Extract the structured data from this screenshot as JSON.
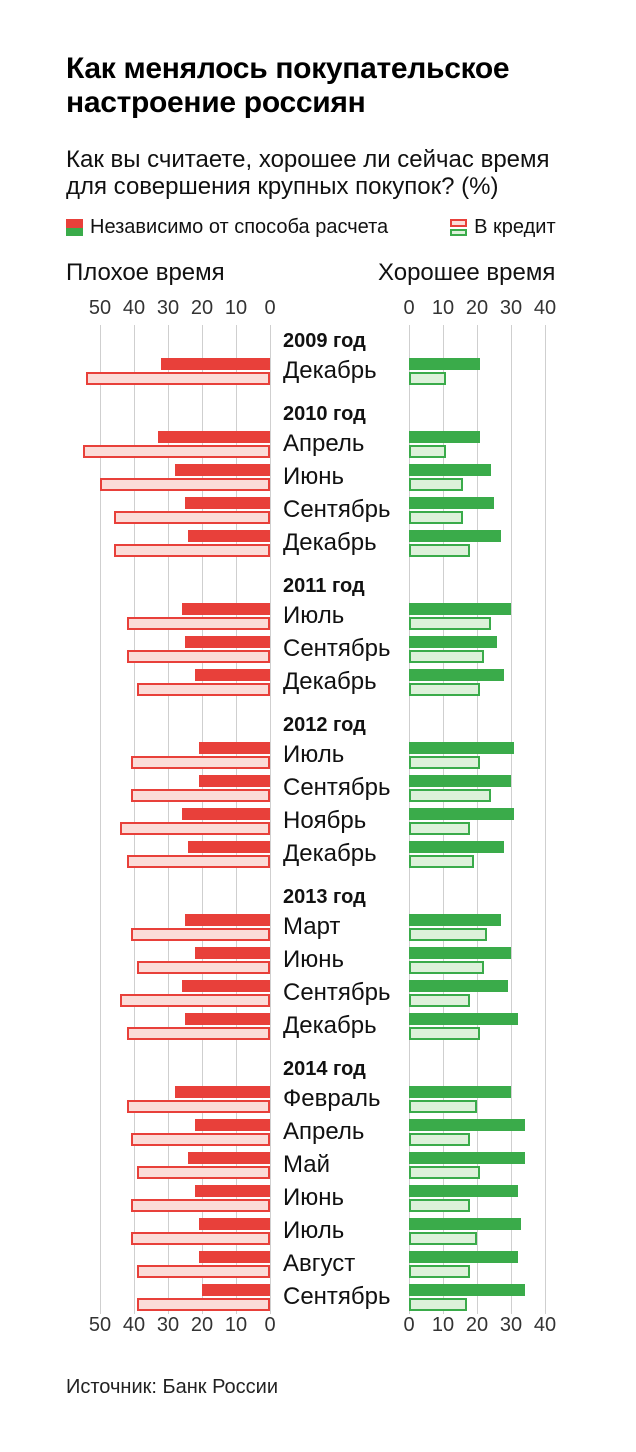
{
  "header": {
    "title_lines": [
      "Как менялось покупательское",
      "настроение россиян"
    ],
    "subtitle_lines": [
      "Как вы считаете, хорошее ли сейчас время",
      "для совершения крупных покупок? (%)"
    ]
  },
  "legend": {
    "any_label": "Независимо от способа расчета",
    "credit_label": "В кредит"
  },
  "columns": {
    "left_header": "Плохое время",
    "right_header": "Хорошее время"
  },
  "axis": {
    "left_ticks": [
      50,
      40,
      30,
      20,
      10,
      0
    ],
    "right_ticks": [
      0,
      10,
      20,
      30,
      40
    ]
  },
  "source": "Источник: Банк России",
  "colors": {
    "red": "#e8403a",
    "red_fill": "#fbdcd8",
    "green": "#3aab4a",
    "green_fill": "#ddf1da",
    "grid": "#cfcfcf"
  },
  "chart_data": {
    "type": "bar",
    "orientation": "diverging-horizontal",
    "title": "Как менялось покупательское настроение россиян",
    "subtitle": "Как вы считаете, хорошее ли сейчас время для совершения крупных покупок? (%)",
    "units": "%",
    "legend_entries": [
      "Независимо от способа расчета",
      "В кредит"
    ],
    "left_side_label": "Плохое время",
    "right_side_label": "Хорошее время",
    "left_axis_range": [
      0,
      55
    ],
    "right_axis_range": [
      0,
      45
    ],
    "grid": true,
    "groups": [
      {
        "year": "2009 год",
        "rows": [
          {
            "month": "Декабрь",
            "bad_any": 32,
            "bad_credit": 54,
            "good_any": 21,
            "good_credit": 11
          }
        ]
      },
      {
        "year": "2010 год",
        "rows": [
          {
            "month": "Апрель",
            "bad_any": 33,
            "bad_credit": 55,
            "good_any": 21,
            "good_credit": 11
          },
          {
            "month": "Июнь",
            "bad_any": 28,
            "bad_credit": 50,
            "good_any": 24,
            "good_credit": 16
          },
          {
            "month": "Сентябрь",
            "bad_any": 25,
            "bad_credit": 46,
            "good_any": 25,
            "good_credit": 16
          },
          {
            "month": "Декабрь",
            "bad_any": 24,
            "bad_credit": 46,
            "good_any": 27,
            "good_credit": 18
          }
        ]
      },
      {
        "year": "2011 год",
        "rows": [
          {
            "month": "Июль",
            "bad_any": 26,
            "bad_credit": 42,
            "good_any": 30,
            "good_credit": 24
          },
          {
            "month": "Сентябрь",
            "bad_any": 25,
            "bad_credit": 42,
            "good_any": 26,
            "good_credit": 22
          },
          {
            "month": "Декабрь",
            "bad_any": 22,
            "bad_credit": 39,
            "good_any": 28,
            "good_credit": 21
          }
        ]
      },
      {
        "year": "2012 год",
        "rows": [
          {
            "month": "Июль",
            "bad_any": 21,
            "bad_credit": 41,
            "good_any": 31,
            "good_credit": 21
          },
          {
            "month": "Сентябрь",
            "bad_any": 21,
            "bad_credit": 41,
            "good_any": 30,
            "good_credit": 24
          },
          {
            "month": "Ноябрь",
            "bad_any": 26,
            "bad_credit": 44,
            "good_any": 31,
            "good_credit": 18
          },
          {
            "month": "Декабрь",
            "bad_any": 24,
            "bad_credit": 42,
            "good_any": 28,
            "good_credit": 19
          }
        ]
      },
      {
        "year": "2013 год",
        "rows": [
          {
            "month": "Март",
            "bad_any": 25,
            "bad_credit": 41,
            "good_any": 27,
            "good_credit": 23
          },
          {
            "month": "Июнь",
            "bad_any": 22,
            "bad_credit": 39,
            "good_any": 30,
            "good_credit": 22
          },
          {
            "month": "Сентябрь",
            "bad_any": 26,
            "bad_credit": 44,
            "good_any": 29,
            "good_credit": 18
          },
          {
            "month": "Декабрь",
            "bad_any": 25,
            "bad_credit": 42,
            "good_any": 32,
            "good_credit": 21
          }
        ]
      },
      {
        "year": "2014 год",
        "rows": [
          {
            "month": "Февраль",
            "bad_any": 28,
            "bad_credit": 42,
            "good_any": 30,
            "good_credit": 20
          },
          {
            "month": "Апрель",
            "bad_any": 22,
            "bad_credit": 41,
            "good_any": 34,
            "good_credit": 18
          },
          {
            "month": "Май",
            "bad_any": 24,
            "bad_credit": 39,
            "good_any": 34,
            "good_credit": 21
          },
          {
            "month": "Июнь",
            "bad_any": 22,
            "bad_credit": 41,
            "good_any": 32,
            "good_credit": 18
          },
          {
            "month": "Июль",
            "bad_any": 21,
            "bad_credit": 41,
            "good_any": 33,
            "good_credit": 20
          },
          {
            "month": "Август",
            "bad_any": 21,
            "bad_credit": 39,
            "good_any": 32,
            "good_credit": 18
          },
          {
            "month": "Сентябрь",
            "bad_any": 20,
            "bad_credit": 39,
            "good_any": 34,
            "good_credit": 17
          }
        ]
      }
    ]
  }
}
